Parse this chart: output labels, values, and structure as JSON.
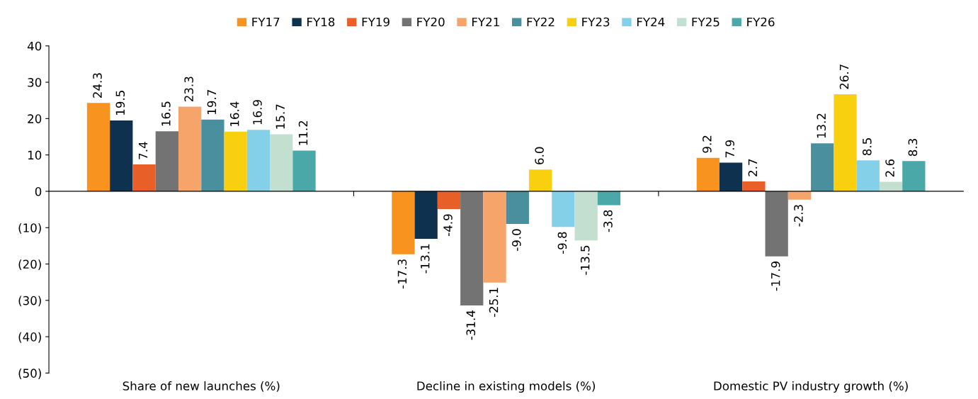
{
  "chart_data": {
    "type": "bar",
    "categories": [
      "Share of new launches (%)",
      "Decline in existing models (%)",
      "Domestic PV industry growth (%)"
    ],
    "series": [
      {
        "name": "FY17",
        "color": "#f7931e",
        "values": [
          24.3,
          -17.3,
          9.2
        ]
      },
      {
        "name": "FY18",
        "color": "#0e3150",
        "values": [
          19.5,
          -13.1,
          7.9
        ]
      },
      {
        "name": "FY19",
        "color": "#e95f28",
        "values": [
          7.4,
          -4.9,
          2.7
        ]
      },
      {
        "name": "FY20",
        "color": "#737373",
        "values": [
          16.5,
          -31.4,
          -17.9
        ]
      },
      {
        "name": "FY21",
        "color": "#f6a46a",
        "values": [
          23.3,
          -25.1,
          -2.3
        ]
      },
      {
        "name": "FY22",
        "color": "#4a8f9e",
        "values": [
          19.7,
          -9.0,
          13.2
        ]
      },
      {
        "name": "FY23",
        "color": "#f9d00f",
        "values": [
          16.4,
          6.0,
          26.7
        ]
      },
      {
        "name": "FY24",
        "color": "#83d0e8",
        "values": [
          16.9,
          -9.8,
          8.5
        ]
      },
      {
        "name": "FY25",
        "color": "#c2dfd0",
        "values": [
          15.7,
          -13.5,
          2.6
        ]
      },
      {
        "name": "FY26",
        "color": "#4ba8a8",
        "values": [
          11.2,
          -3.8,
          8.3
        ]
      }
    ],
    "value_labels": [
      [
        "24.3",
        "-17.3",
        "9.2"
      ],
      [
        "19.5",
        "-13.1",
        "7.9"
      ],
      [
        "7.4",
        "-4.9",
        "2.7"
      ],
      [
        "16.5",
        "-31.4",
        "-17.9"
      ],
      [
        "23.3",
        "-25.1",
        "-2.3"
      ],
      [
        "19.7",
        "-9.0",
        "13.2"
      ],
      [
        "16.4",
        "6.0",
        "26.7"
      ],
      [
        "16.9",
        "-9.8",
        "8.5"
      ],
      [
        "15.7",
        "-13.5",
        "2.6"
      ],
      [
        "11.2",
        "-3.8",
        "8.3"
      ]
    ],
    "ylim": [
      -50,
      40
    ],
    "yticks": [
      {
        "value": -50,
        "label": "(50)"
      },
      {
        "value": -40,
        "label": "(40)"
      },
      {
        "value": -30,
        "label": "(30)"
      },
      {
        "value": -20,
        "label": "(20)"
      },
      {
        "value": -10,
        "label": "(10)"
      },
      0,
      10,
      20,
      30,
      40
    ],
    "legend": "top"
  }
}
